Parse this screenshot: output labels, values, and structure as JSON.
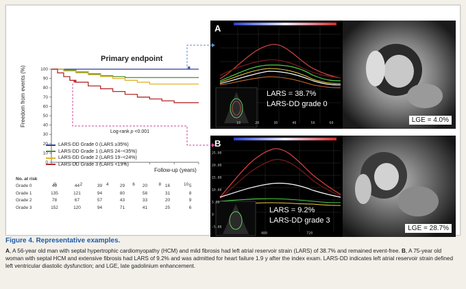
{
  "figure": {
    "panel_a_letter": "A",
    "panel_b_letter": "B",
    "km_title": "Primary endpoint",
    "y_label": "Freedom from events (%)",
    "y_ticks": [
      "100",
      "90",
      "80",
      "70",
      "60",
      "50",
      "40",
      "30",
      "20",
      "10",
      "0"
    ],
    "x_ticks": [
      "0",
      "2",
      "4",
      "6",
      "8",
      "10",
      "12"
    ],
    "x_label": "Follow-up (years)",
    "logrank_prefix": "Log-rank ",
    "logrank_p": "p",
    "logrank_suffix": " <0.001",
    "legend": [
      {
        "label": "LARS-DD Grade 0 (LARS ≥35%)",
        "color": "#2f3f8f"
      },
      {
        "label": "LARS-DD Grade 1 (LARS 24−<35%)",
        "color": "#4a8c35"
      },
      {
        "label": "LARS-DD Grade 2 (LARS 19−<24%)",
        "color": "#e0b22c"
      },
      {
        "label": "LARS-DD Grade 3 (LARS <19%)",
        "color": "#b32a2a"
      }
    ],
    "risk_table": {
      "header": "No. at risk",
      "rows": [
        {
          "label": "Grade 0",
          "values": [
            "49",
            "44",
            "39",
            "29",
            "20",
            "16",
            "5"
          ]
        },
        {
          "label": "Grade 1",
          "values": [
            "135",
            "121",
            "94",
            "80",
            "58",
            "31",
            "8"
          ]
        },
        {
          "label": "Grade 2",
          "values": [
            "78",
            "67",
            "57",
            "43",
            "33",
            "20",
            "9"
          ]
        },
        {
          "label": "Grade 3",
          "values": [
            "152",
            "120",
            "94",
            "71",
            "41",
            "25",
            "6"
          ]
        }
      ]
    },
    "panel_a": {
      "lars": "LARS = 38.7%",
      "grade": "LARS-DD grade 0",
      "lge": "LGE = 4.0%"
    },
    "panel_b": {
      "lars": "LARS = 9.2%",
      "grade": "LARS-DD grade 3",
      "lge": "LGE = 28.7%"
    },
    "strain_a_axis": [
      "10",
      "20",
      "30",
      "40",
      "50",
      "60"
    ],
    "strain_b_yticks": [
      "25.00",
      "20.00",
      "15.00",
      "10.00",
      "5.00",
      "0",
      "-5.00"
    ],
    "strain_b_xticks": [
      "480",
      "720",
      "960"
    ],
    "chart_data": {
      "type": "line",
      "title": "Primary endpoint",
      "xlabel": "Follow-up (years)",
      "ylabel": "Freedom from events (%)",
      "xlim": [
        0,
        12
      ],
      "ylim": [
        0,
        100
      ],
      "series": [
        {
          "name": "LARS-DD Grade 0 (LARS ≥35%)",
          "color": "#2f3f8f",
          "points": [
            [
              0,
              100
            ],
            [
              12,
              100
            ]
          ]
        },
        {
          "name": "LARS-DD Grade 1 (LARS 24−<35%)",
          "color": "#4a8c35",
          "points": [
            [
              0,
              100
            ],
            [
              1,
              99
            ],
            [
              2,
              97
            ],
            [
              3,
              95
            ],
            [
              4,
              93
            ],
            [
              5,
              92
            ],
            [
              6,
              91
            ],
            [
              12,
              91
            ]
          ]
        },
        {
          "name": "LARS-DD Grade 2 (LARS 19−<24%)",
          "color": "#e0b22c",
          "points": [
            [
              0,
              100
            ],
            [
              1,
              98
            ],
            [
              2,
              96
            ],
            [
              3,
              94
            ],
            [
              4,
              92
            ],
            [
              5,
              90
            ],
            [
              6,
              88
            ],
            [
              7,
              86
            ],
            [
              8,
              84
            ],
            [
              12,
              84
            ]
          ]
        },
        {
          "name": "LARS-DD Grade 3 (LARS <19%)",
          "color": "#b32a2a",
          "points": [
            [
              0,
              100
            ],
            [
              0.5,
              96
            ],
            [
              1,
              92
            ],
            [
              1.5,
              88
            ],
            [
              2,
              86
            ],
            [
              3,
              82
            ],
            [
              4,
              79
            ],
            [
              5,
              76
            ],
            [
              6,
              73
            ],
            [
              7,
              70
            ],
            [
              8,
              68
            ],
            [
              9,
              66
            ],
            [
              10,
              64
            ],
            [
              12,
              64
            ]
          ]
        }
      ]
    }
  },
  "caption": {
    "heading": "Figure 4. Representative examples.",
    "a_letter": "A",
    "a_text": ", A 56-year old man with septal hypertrophic cardiomyopathy (HCM) and mild fibrosis had left atrial reservoir strain (LARS) of 38.7% and remained event-free. ",
    "b_letter": "B",
    "b_text": ", A 75-year old woman with septal HCM and extensive fibrosis had LARS of 9.2% and was admitted for heart failure 1.9 y after the index exam. LARS-DD indicates left atrial reservoir strain defined left ventricular diastolic dysfunction; and LGE, late gadolinium enhancement."
  }
}
